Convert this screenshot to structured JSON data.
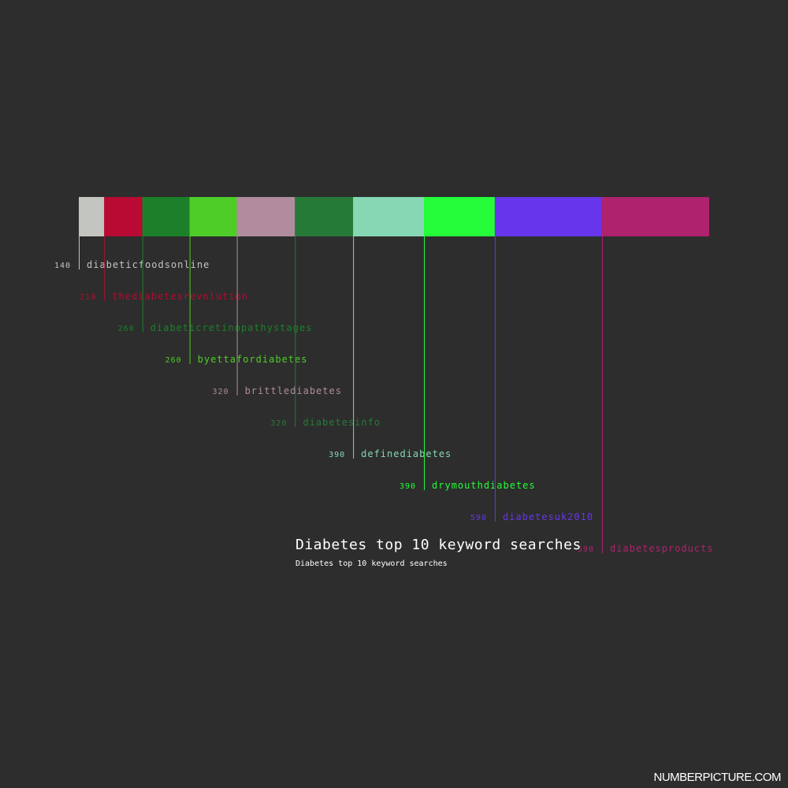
{
  "chart_data": {
    "type": "bar",
    "title": "Diabetes top 10 keyword searches",
    "subtitle": "Diabetes top 10 keyword searches",
    "categories": [
      "diabeticfoodsonline",
      "thediabetesrevolution",
      "diabeticretinopathystages",
      "byettafordiabetes",
      "brittlediabetes",
      "diabetesinfo",
      "definediabetes",
      "drymouthdiabetes",
      "diabetesuk2010",
      "diabetesproducts"
    ],
    "values": [
      140,
      210,
      260,
      260,
      320,
      320,
      390,
      390,
      590,
      590
    ],
    "colors": [
      "#c3c5c0",
      "#b80a32",
      "#1b8029",
      "#4ecd28",
      "#b08c9d",
      "#267a37",
      "#86d7b3",
      "#25fc3a",
      "#6735eb",
      "#ae226e"
    ],
    "label_colors": [
      "#c3c5c0",
      "#b80a32",
      "#1b8029",
      "#4ecd28",
      "#b08c9d",
      "#267a37",
      "#86d7b3",
      "#25fc3a",
      "#6735eb",
      "#ae226e"
    ],
    "value_label_colors": [
      "#c3c5c0",
      "#b80a32",
      "#1b8029",
      "#4ecd28",
      "#b08c9d",
      "#267a37",
      "#86d7b3",
      "#25fc3a",
      "#6735eb",
      "#ae226e"
    ],
    "layout": "stacked-horizontal-single-bar"
  },
  "brand": "NUMBERPICTURE.COM"
}
